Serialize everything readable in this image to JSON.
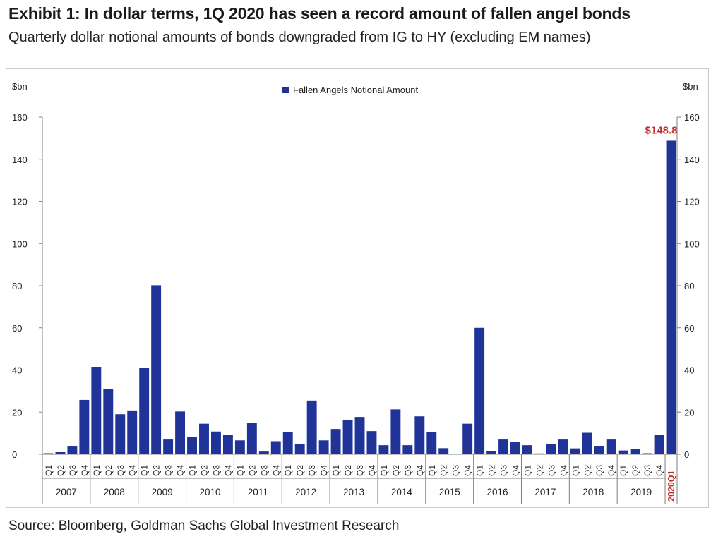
{
  "header": {
    "title": "Exhibit 1: In dollar terms, 1Q 2020 has seen a record amount of fallen angel bonds",
    "subtitle": "Quarterly dollar notional amounts of bonds downgraded from IG to HY (excluding EM names)"
  },
  "footer": {
    "source": "Source: Bloomberg, Goldman Sachs Global Investment Research"
  },
  "colors": {
    "bar": "#1f3399",
    "annotation": "#c0302b",
    "axis": "#7f7f7f",
    "text": "#222222"
  },
  "chart_data": {
    "type": "bar",
    "ylabel_left": "$bn",
    "ylabel_right": "$bn",
    "ylim": [
      0,
      160
    ],
    "yticks": [
      0,
      20,
      40,
      60,
      80,
      100,
      120,
      140,
      160
    ],
    "grid": false,
    "legend": {
      "position": "top-center",
      "entries": [
        "Fallen Angels Notional Amount"
      ]
    },
    "series": [
      {
        "name": "Fallen Angels Notional Amount",
        "values": [
          0.5,
          1,
          4,
          25.8,
          41.5,
          30.8,
          19,
          20.8,
          41,
          80.2,
          7,
          20.3,
          8.3,
          14.5,
          10.8,
          9.3,
          6.6,
          14.8,
          1.3,
          6.2,
          10.7,
          5,
          25.5,
          6.6,
          12,
          16.3,
          17.7,
          11,
          4.3,
          21.3,
          4.3,
          18,
          10.7,
          2.9,
          0,
          14.5,
          60,
          1.4,
          7,
          6,
          4.3,
          0.4,
          5,
          7,
          2.8,
          10.2,
          4,
          7,
          1.8,
          2.5,
          0.5,
          9.3,
          148.8
        ]
      }
    ],
    "quarter_labels": [
      "Q1",
      "Q2",
      "Q3",
      "Q4",
      "Q1",
      "Q2",
      "Q3",
      "Q4",
      "Q1",
      "Q2",
      "Q3",
      "Q4",
      "Q1",
      "Q2",
      "Q3",
      "Q4",
      "Q1",
      "Q2",
      "Q3",
      "Q4",
      "Q1",
      "Q2",
      "Q3",
      "Q4",
      "Q1",
      "Q2",
      "Q3",
      "Q4",
      "Q1",
      "Q2",
      "Q3",
      "Q4",
      "Q1",
      "Q2",
      "Q3",
      "Q4",
      "Q1",
      "Q2",
      "Q3",
      "Q4",
      "Q1",
      "Q2",
      "Q3",
      "Q4",
      "Q1",
      "Q2",
      "Q3",
      "Q4",
      "Q1",
      "Q2",
      "Q3",
      "Q4",
      "2020Q1"
    ],
    "years": [
      "2007",
      "2008",
      "2009",
      "2010",
      "2011",
      "2012",
      "2013",
      "2014",
      "2015",
      "2016",
      "2017",
      "2018",
      "2019"
    ],
    "annotation": {
      "text": "$148.8",
      "index": 52
    }
  }
}
